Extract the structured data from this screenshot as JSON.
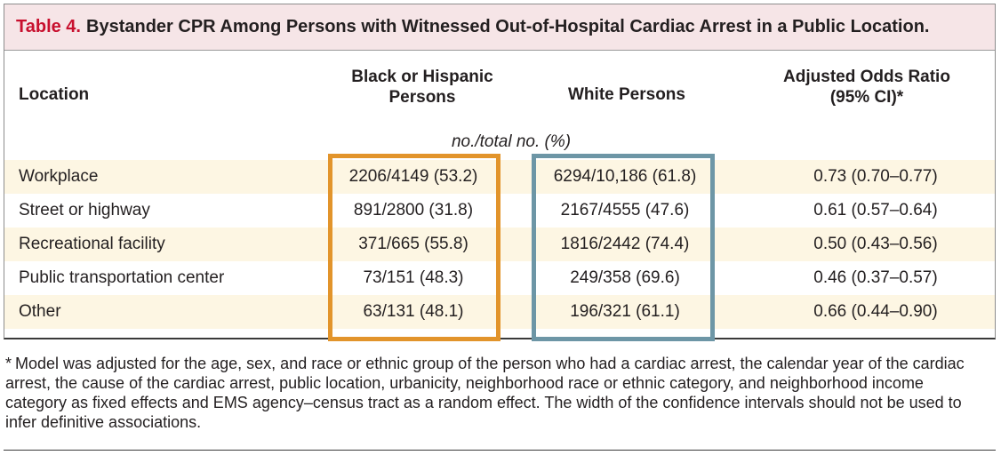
{
  "title": {
    "label": "Table 4.",
    "text": "Bystander CPR Among Persons with Witnessed Out-of-Hospital Cardiac Arrest in a Public Location."
  },
  "headers": {
    "location": "Location",
    "black_hispanic_line1": "Black or Hispanic",
    "black_hispanic_line2": "Persons",
    "white": "White Persons",
    "odds_ratio_line1": "Adjusted Odds Ratio",
    "odds_ratio_line2": "(95% CI)*"
  },
  "units": "no./total no. (%)",
  "rows": [
    {
      "location": "Workplace",
      "black_hispanic": "2206/4149 (53.2)",
      "white": "6294/10,186 (61.8)",
      "odds_ratio": "0.73 (0.70–0.77)"
    },
    {
      "location": "Street or highway",
      "black_hispanic": "891/2800 (31.8)",
      "white": "2167/4555 (47.6)",
      "odds_ratio": "0.61 (0.57–0.64)"
    },
    {
      "location": "Recreational facility",
      "black_hispanic": "371/665 (55.8)",
      "white": "1816/2442 (74.4)",
      "odds_ratio": "0.50 (0.43–0.56)"
    },
    {
      "location": "Public transportation center",
      "black_hispanic": "73/151 (48.3)",
      "white": "249/358 (69.6)",
      "odds_ratio": "0.46 (0.37–0.57)"
    },
    {
      "location": "Other",
      "black_hispanic": "63/131 (48.1)",
      "white": "196/321 (61.1)",
      "odds_ratio": "0.66 (0.44–0.90)"
    }
  ],
  "footnote": {
    "mark": "*",
    "text": "Model was adjusted for the age, sex, and race or ethnic group of the person who had a cardiac arrest, the calendar year of the cardiac arrest, the cause of the cardiac arrest, public location, urbanicity, neighborhood race or ethnic category, and neighborhood income category as fixed effects and EMS agency–census tract as a random effect. The width of the confidence intervals should not be used to infer definitive associations."
  },
  "colors": {
    "title_label": "#c8102e",
    "title_bg": "#f6e5e7",
    "row_shade": "#fdf6e3",
    "highlight_black_hispanic": "#e2942b",
    "highlight_white": "#6d96a6"
  }
}
